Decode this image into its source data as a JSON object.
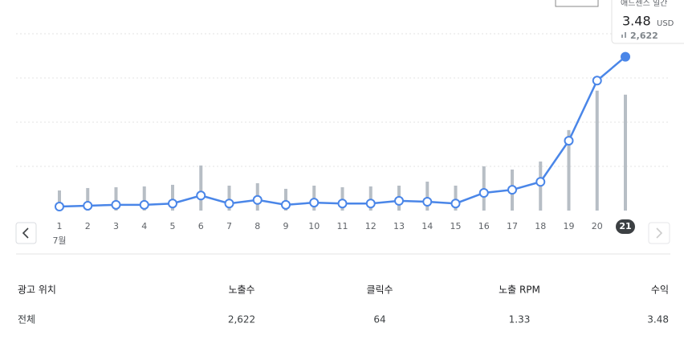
{
  "chart_data": {
    "type": "bar-line",
    "categories": [
      "1",
      "2",
      "3",
      "4",
      "5",
      "6",
      "7",
      "8",
      "9",
      "10",
      "11",
      "12",
      "13",
      "14",
      "15",
      "16",
      "17",
      "18",
      "19",
      "20",
      "21"
    ],
    "x_sublabel": "7월",
    "selected": 20,
    "ylim": [
      0,
      4
    ],
    "y2lim": [
      0,
      4000
    ],
    "series": [
      {
        "kind": "bar",
        "axis": "y2",
        "color": "#b7bec5",
        "values": [
          455,
          510,
          528,
          546,
          583,
          1020,
          564,
          619,
          492,
          564,
          528,
          546,
          564,
          655,
          564,
          1001,
          928,
          1110,
          1821,
          2713,
          2622
        ]
      },
      {
        "kind": "line",
        "color": "#4a86e8",
        "values": [
          0.09,
          0.11,
          0.13,
          0.13,
          0.16,
          0.34,
          0.16,
          0.24,
          0.13,
          0.18,
          0.16,
          0.16,
          0.22,
          0.2,
          0.16,
          0.4,
          0.47,
          0.65,
          1.58,
          2.94,
          3.48
        ]
      }
    ]
  },
  "tooltip": {
    "label": "애드센스 일간",
    "value": "3.48",
    "unit": "USD",
    "impressions": "2,622"
  },
  "table": {
    "header": [
      "광고 위치",
      "노출수",
      "클릭수",
      "노출 RPM",
      "수익"
    ],
    "rows": [
      [
        "전체",
        "2,622",
        "64",
        "1.33",
        "3.48"
      ]
    ]
  }
}
